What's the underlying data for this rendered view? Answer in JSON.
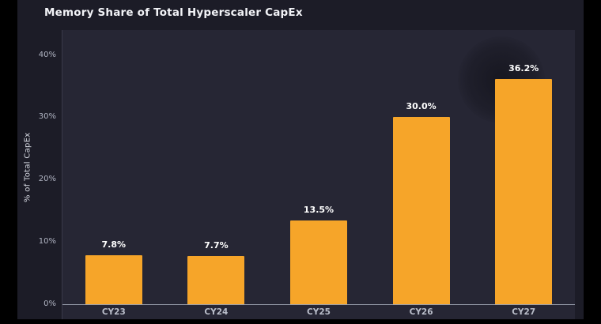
{
  "title": "Memory Share of Total Hyperscaler CapEx",
  "chart_data": {
    "type": "bar",
    "categories": [
      "CY23",
      "CY24",
      "CY25",
      "CY26",
      "CY27"
    ],
    "values": [
      7.8,
      7.7,
      13.5,
      30.0,
      36.2
    ],
    "value_labels": [
      "7.8%",
      "7.7%",
      "13.5%",
      "30.0%",
      "36.2%"
    ],
    "title": "Memory Share of Total Hyperscaler CapEx",
    "xlabel": "",
    "ylabel": "% of Total CapEx",
    "ylim": [
      0,
      44
    ],
    "yticks": [
      0,
      10,
      20,
      30,
      40
    ],
    "ytick_labels": [
      "0%",
      "10%",
      "20%",
      "30%",
      "40%"
    ],
    "grid": false,
    "legend": "none",
    "bar_color": "#f6a529",
    "plot_background": "#262634",
    "card_background": "#1c1c27",
    "label_color": "#ffffff",
    "tick_color": "#b0b4c2"
  }
}
